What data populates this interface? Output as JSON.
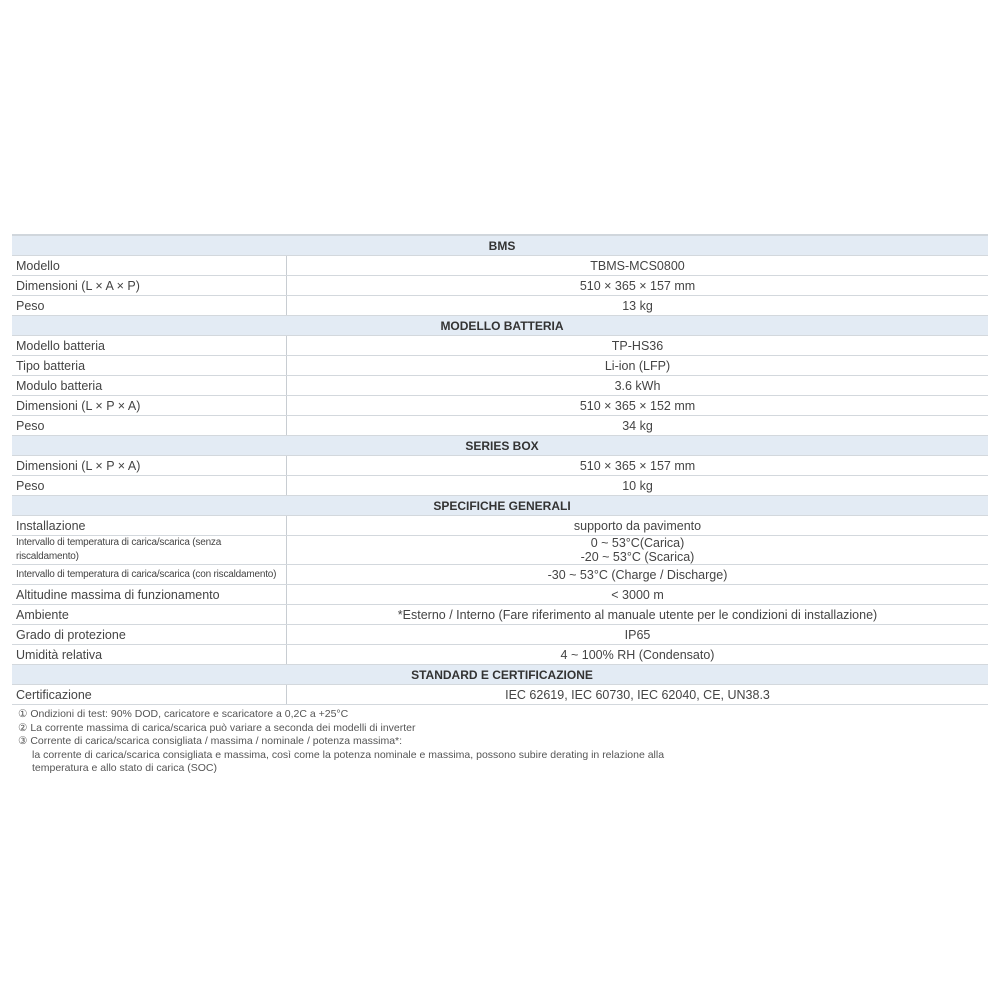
{
  "table": [
    {
      "header": "BMS"
    },
    {
      "label": "Modello",
      "value": "TBMS-MCS0800"
    },
    {
      "label": "Dimensioni (L × A × P)",
      "value": "510 × 365 × 157 mm"
    },
    {
      "label": "Peso",
      "value": "13 kg"
    },
    {
      "header": "MODELLO BATTERIA"
    },
    {
      "label": "Modello batteria",
      "value": "TP-HS36"
    },
    {
      "label": "Tipo batteria",
      "value": "Li-ion (LFP)"
    },
    {
      "label": "Modulo batteria",
      "value": "3.6 kWh"
    },
    {
      "label": "Dimensioni (L × P × A)",
      "value": "510 × 365 × 152 mm"
    },
    {
      "label": "Peso",
      "value": "34 kg"
    },
    {
      "header": "SERIES BOX"
    },
    {
      "label": "Dimensioni (L × P × A)",
      "value": "510 × 365 × 157 mm"
    },
    {
      "label": "Peso",
      "value": "10 kg"
    },
    {
      "header": "SPECIFICHE GENERALI"
    },
    {
      "label": "Installazione",
      "value": "supporto da pavimento"
    },
    {
      "label": "Intervallo di temperatura di carica/scarica (senza riscaldamento)",
      "small": true,
      "value": "0 ~ 53°C(Carica)",
      "value2": "-20 ~ 53°C (Scarica)"
    },
    {
      "label": "Intervallo di temperatura di carica/scarica (con riscaldamento)",
      "small": true,
      "value": "-30 ~ 53°C (Charge / Discharge)"
    },
    {
      "label": "Altitudine massima di funzionamento",
      "value": "< 3000 m"
    },
    {
      "label": "Ambiente",
      "value": "*Esterno / Interno (Fare riferimento al manuale utente per le condizioni di installazione)"
    },
    {
      "label": "Grado di protezione",
      "value": "IP65"
    },
    {
      "label": "Umidità relativa",
      "value": "4 ~ 100% RH (Condensato)"
    },
    {
      "header": "STANDARD E  CERTIFICAZIONE"
    },
    {
      "label": "Certificazione",
      "value": "IEC 62619, IEC 60730, IEC 62040, CE, UN38.3"
    }
  ],
  "notes": [
    "① Ondizioni di test: 90% DOD, caricatore e scaricatore a 0,2C a +25°C",
    "② La corrente massima di carica/scarica può variare a seconda dei modelli di inverter",
    "③ Corrente di carica/scarica consigliata / massima / nominale / potenza massima*:",
    "la corrente di carica/scarica consigliata e massima, così come la potenza nominale e massima, possono subire derating in relazione alla",
    "temperatura e allo stato di carica (SOC)"
  ]
}
